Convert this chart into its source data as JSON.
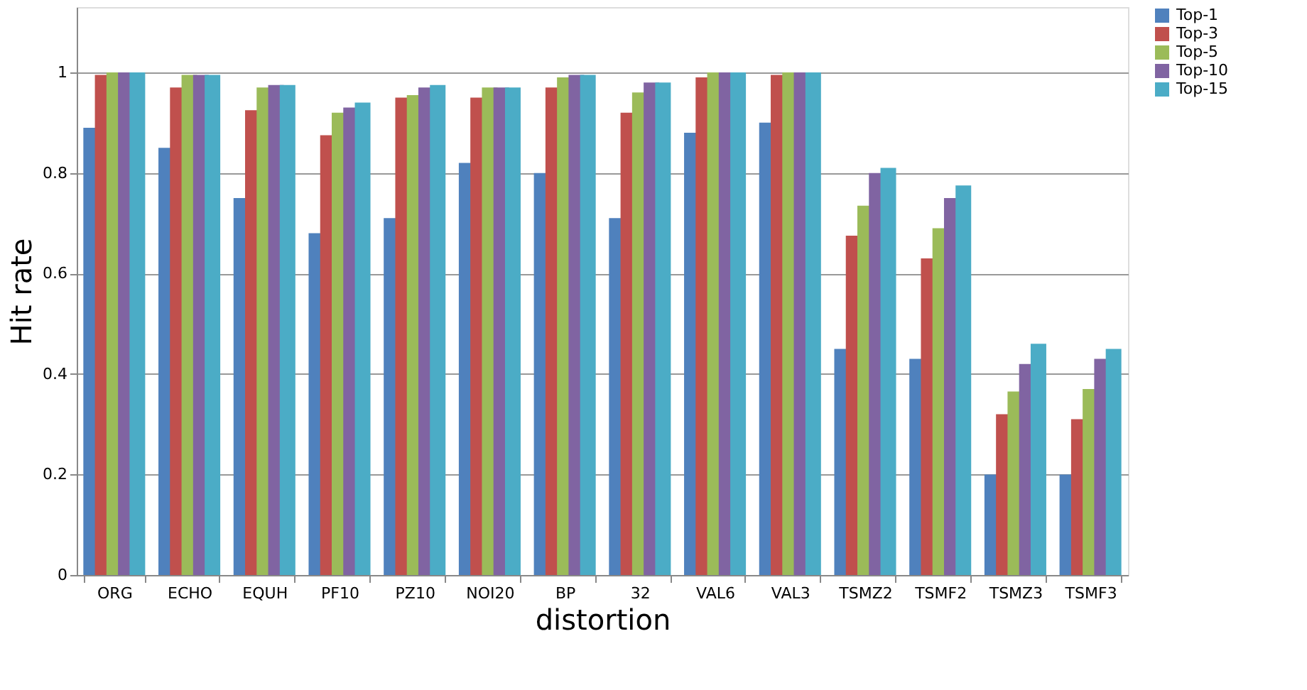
{
  "chart_data": {
    "type": "bar",
    "xlabel": "distortion",
    "ylabel": "Hit rate",
    "categories": [
      "ORG",
      "ECHO",
      "EQUH",
      "PF10",
      "PZ10",
      "NOI20",
      "BP",
      "32",
      "VAL6",
      "VAL3",
      "TSMZ2",
      "TSMF2",
      "TSMZ3",
      "TSMF3"
    ],
    "series": [
      {
        "name": "Top-1",
        "color": "#4f81bd",
        "values": [
          0.89,
          0.85,
          0.75,
          0.68,
          0.71,
          0.82,
          0.8,
          0.71,
          0.88,
          0.9,
          0.45,
          0.43,
          0.2,
          0.2
        ]
      },
      {
        "name": "Top-3",
        "color": "#c0504d",
        "values": [
          0.995,
          0.97,
          0.925,
          0.875,
          0.95,
          0.95,
          0.97,
          0.92,
          0.99,
          0.995,
          0.675,
          0.63,
          0.32,
          0.31
        ]
      },
      {
        "name": "Top-5",
        "color": "#9bbb59",
        "values": [
          1.0,
          0.995,
          0.97,
          0.92,
          0.955,
          0.97,
          0.99,
          0.96,
          1.0,
          1.0,
          0.735,
          0.69,
          0.365,
          0.37
        ]
      },
      {
        "name": "Top-10",
        "color": "#8064a2",
        "values": [
          1.0,
          0.995,
          0.975,
          0.93,
          0.97,
          0.97,
          0.995,
          0.98,
          1.0,
          1.0,
          0.8,
          0.75,
          0.42,
          0.43
        ]
      },
      {
        "name": "Top-15",
        "color": "#4bacc6",
        "values": [
          1.0,
          0.995,
          0.975,
          0.94,
          0.975,
          0.97,
          0.995,
          0.98,
          1.0,
          1.0,
          0.81,
          0.775,
          0.46,
          0.45
        ]
      }
    ],
    "ylim": [
      0,
      1.13
    ],
    "yticks": [
      0,
      0.2,
      0.4,
      0.6,
      0.8,
      1
    ],
    "grid": "y",
    "legend": "right"
  }
}
